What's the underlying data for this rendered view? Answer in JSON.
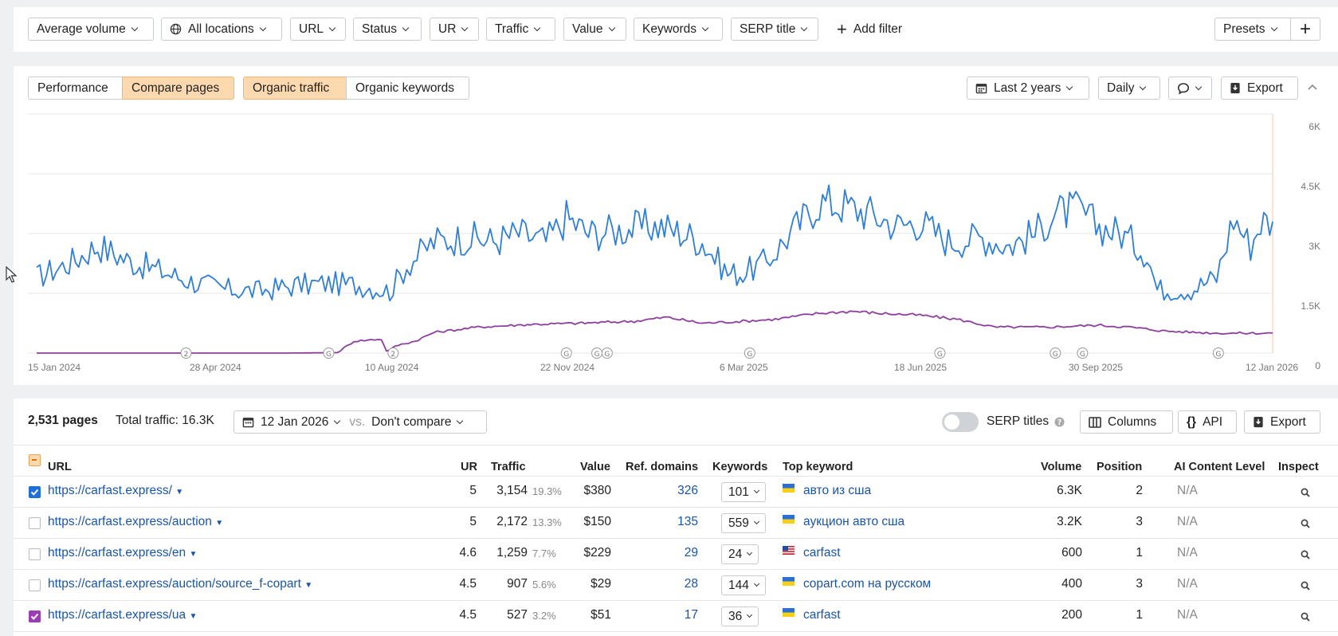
{
  "filters": [
    "Average volume",
    "All locations",
    "URL",
    "Status",
    "UR",
    "Traffic",
    "Value",
    "Keywords",
    "SERP title"
  ],
  "add_filter": "Add filter",
  "presets": "Presets",
  "chart_toolbar": {
    "view_tabs": [
      "Performance",
      "Compare pages"
    ],
    "metric_tabs": [
      "Organic traffic",
      "Organic keywords"
    ],
    "range": "Last 2 years",
    "granularity": "Daily",
    "export": "Export"
  },
  "chart_data": {
    "type": "line",
    "x_ticks": [
      "15 Jan 2024",
      "28 Apr 2024",
      "10 Aug 2024",
      "22 Nov 2024",
      "6 Mar 2025",
      "18 Jun 2025",
      "30 Sep 2025",
      "12 Jan 2026"
    ],
    "y_ticks": [
      "0",
      "1.5K",
      "3K",
      "4.5K",
      "6K"
    ],
    "ylim": [
      0,
      6000
    ],
    "series": [
      {
        "color": "#2f7ed8",
        "points": [
          [
            "2024-01-15",
            1900
          ],
          [
            "2024-02-05",
            2300
          ],
          [
            "2024-02-20",
            2700
          ],
          [
            "2024-03-10",
            2300
          ],
          [
            "2024-03-25",
            2100
          ],
          [
            "2024-04-15",
            1800
          ],
          [
            "2024-05-05",
            1600
          ],
          [
            "2024-05-25",
            1550
          ],
          [
            "2024-06-15",
            1700
          ],
          [
            "2024-07-05",
            1750
          ],
          [
            "2024-07-25",
            1700
          ],
          [
            "2024-08-10",
            1550
          ],
          [
            "2024-08-20",
            2200
          ],
          [
            "2024-09-05",
            2800
          ],
          [
            "2024-09-25",
            2900
          ],
          [
            "2024-10-10",
            2800
          ],
          [
            "2024-10-25",
            3000
          ],
          [
            "2024-11-10",
            2800
          ],
          [
            "2024-11-22",
            3400
          ],
          [
            "2024-12-05",
            3000
          ],
          [
            "2024-12-25",
            3100
          ],
          [
            "2025-01-15",
            3200
          ],
          [
            "2025-01-30",
            3000
          ],
          [
            "2025-02-10",
            2800
          ],
          [
            "2025-02-25",
            2000
          ],
          [
            "2025-03-06",
            2000
          ],
          [
            "2025-03-20",
            2300
          ],
          [
            "2025-04-01",
            2900
          ],
          [
            "2025-04-20",
            3800
          ],
          [
            "2025-05-05",
            3700
          ],
          [
            "2025-05-20",
            3500
          ],
          [
            "2025-06-05",
            3200
          ],
          [
            "2025-06-18",
            3300
          ],
          [
            "2025-07-05",
            2800
          ],
          [
            "2025-07-25",
            2900
          ],
          [
            "2025-08-10",
            2700
          ],
          [
            "2025-08-25",
            3000
          ],
          [
            "2025-09-05",
            3500
          ],
          [
            "2025-09-20",
            3600
          ],
          [
            "2025-09-30",
            3200
          ],
          [
            "2025-10-15",
            3000
          ],
          [
            "2025-10-30",
            2500
          ],
          [
            "2025-11-05",
            1600
          ],
          [
            "2025-11-25",
            1600
          ],
          [
            "2025-12-10",
            1900
          ],
          [
            "2025-12-20",
            3400
          ],
          [
            "2025-12-30",
            2700
          ],
          [
            "2026-01-05",
            3300
          ],
          [
            "2026-01-12",
            3300
          ]
        ]
      },
      {
        "color": "#8e3e9e",
        "points": [
          [
            "2024-01-15",
            0
          ],
          [
            "2024-06-10",
            0
          ],
          [
            "2024-07-10",
            10
          ],
          [
            "2024-07-20",
            300
          ],
          [
            "2024-08-05",
            350
          ],
          [
            "2024-08-08",
            50
          ],
          [
            "2024-08-15",
            200
          ],
          [
            "2024-08-25",
            300
          ],
          [
            "2024-09-05",
            520
          ],
          [
            "2024-10-01",
            650
          ],
          [
            "2024-11-01",
            720
          ],
          [
            "2024-12-01",
            750
          ],
          [
            "2025-01-01",
            800
          ],
          [
            "2025-01-20",
            900
          ],
          [
            "2025-02-10",
            750
          ],
          [
            "2025-03-06",
            800
          ],
          [
            "2025-03-25",
            850
          ],
          [
            "2025-04-20",
            1000
          ],
          [
            "2025-05-10",
            1050
          ],
          [
            "2025-05-25",
            1000
          ],
          [
            "2025-06-18",
            950
          ],
          [
            "2025-07-10",
            850
          ],
          [
            "2025-08-01",
            650
          ],
          [
            "2025-09-01",
            650
          ],
          [
            "2025-10-01",
            700
          ],
          [
            "2025-10-20",
            650
          ],
          [
            "2025-11-10",
            550
          ],
          [
            "2025-12-10",
            500
          ],
          [
            "2026-01-12",
            500
          ]
        ]
      }
    ],
    "markers": [
      {
        "x": "2024-04-12",
        "label": "2"
      },
      {
        "x": "2024-07-05",
        "label": "G"
      },
      {
        "x": "2024-08-12",
        "label": "2"
      },
      {
        "x": "2024-11-22",
        "label": "G"
      },
      {
        "x": "2024-12-10",
        "label": "G"
      },
      {
        "x": "2024-12-16",
        "label": "G"
      },
      {
        "x": "2025-03-10",
        "label": "G"
      },
      {
        "x": "2025-06-30",
        "label": "G"
      },
      {
        "x": "2025-09-06",
        "label": "G"
      },
      {
        "x": "2025-09-22",
        "label": "G"
      },
      {
        "x": "2025-12-11",
        "label": "G"
      }
    ]
  },
  "table_toolbar": {
    "pages_count": "2,531 pages",
    "total_traffic": "Total traffic: 16.3K",
    "date": "12 Jan 2026",
    "vs": "vs.",
    "compare": "Don't compare",
    "serp_titles": "SERP titles",
    "columns": "Columns",
    "api": "API",
    "export": "Export"
  },
  "table_headers": [
    "URL",
    "UR",
    "Traffic",
    "Value",
    "Ref. domains",
    "Keywords",
    "Top keyword",
    "Volume",
    "Position",
    "AI Content Level",
    "Inspect"
  ],
  "rows": [
    {
      "url": "https://carfast.express/",
      "ur": "5",
      "traffic": "3,154",
      "share": "19.3%",
      "value": "$380",
      "ref": "326",
      "kw": "101",
      "flag": "ua",
      "top": "авто из сша",
      "volume": "6.3K",
      "pos": "2",
      "ai": "N/A",
      "check": "blue"
    },
    {
      "url": "https://carfast.express/auction",
      "ur": "5",
      "traffic": "2,172",
      "share": "13.3%",
      "value": "$150",
      "ref": "135",
      "kw": "559",
      "flag": "ua",
      "top": "аукцион авто сша",
      "volume": "3.2K",
      "pos": "3",
      "ai": "N/A",
      "check": "none"
    },
    {
      "url": "https://carfast.express/en",
      "ur": "4.6",
      "traffic": "1,259",
      "share": "7.7%",
      "value": "$229",
      "ref": "29",
      "kw": "24",
      "flag": "us",
      "top": "carfast",
      "volume": "600",
      "pos": "1",
      "ai": "N/A",
      "check": "none"
    },
    {
      "url": "https://carfast.express/auction/source_f-copart",
      "ur": "4.5",
      "traffic": "907",
      "share": "5.6%",
      "value": "$29",
      "ref": "28",
      "kw": "144",
      "flag": "ua",
      "top": "copart.com на русском",
      "volume": "400",
      "pos": "3",
      "ai": "N/A",
      "check": "none"
    },
    {
      "url": "https://carfast.express/ua",
      "ur": "4.5",
      "traffic": "527",
      "share": "3.2%",
      "value": "$51",
      "ref": "17",
      "kw": "36",
      "flag": "ua",
      "top": "carfast",
      "volume": "200",
      "pos": "1",
      "ai": "N/A",
      "check": "purple"
    }
  ]
}
